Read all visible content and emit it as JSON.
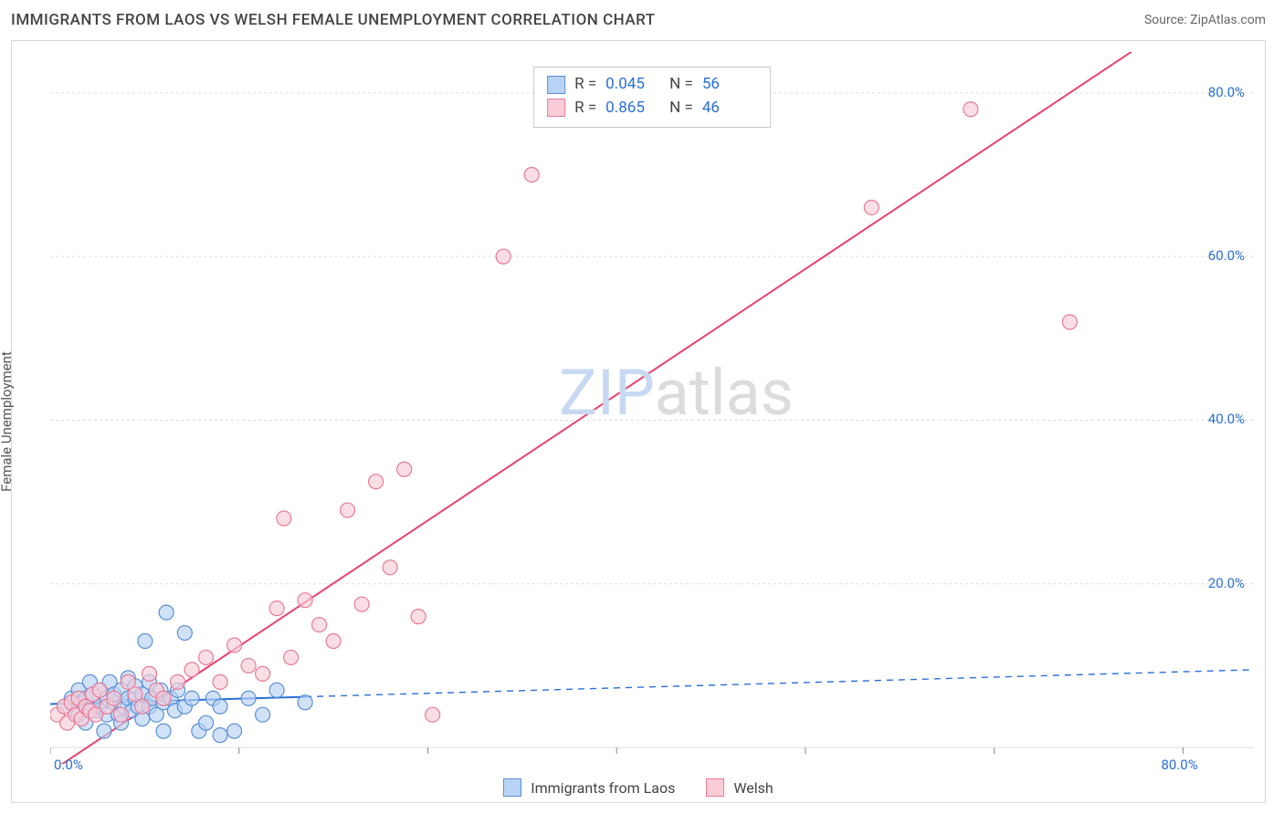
{
  "header": {
    "title": "IMMIGRANTS FROM LAOS VS WELSH FEMALE UNEMPLOYMENT CORRELATION CHART",
    "source_prefix": "Source: ",
    "source_name": "ZipAtlas.com"
  },
  "chart": {
    "type": "scatter",
    "ylabel": "Female Unemployment",
    "background_color": "#ffffff",
    "border_color": "#d9d9d9",
    "grid_color": "#dddddd",
    "tick_color": "#888888",
    "tick_label_color": "#2a6fd6",
    "xlim": [
      0,
      85
    ],
    "ylim": [
      -2,
      85
    ],
    "xticks": [
      0,
      13.33,
      26.67,
      40,
      53.33,
      66.67,
      80
    ],
    "xtick_labels": [
      "0.0%",
      "",
      "",
      "",
      "",
      "",
      "80.0%"
    ],
    "yticks": [
      20,
      40,
      60,
      80
    ],
    "ytick_labels": [
      "20.0%",
      "40.0%",
      "60.0%",
      "80.0%"
    ],
    "marker_radius": 8,
    "marker_stroke_width": 1.2,
    "series": [
      {
        "key": "laos",
        "label": "Immigrants from Laos",
        "fill": "#b9d3f4",
        "stroke": "#5a90d6",
        "reg_line": {
          "color": "#2a6fd6",
          "dash_solid_xmax": 18,
          "y_at_x0": 5.3,
          "y_at_xmax": 9.5,
          "width": 2
        },
        "stats": {
          "R": "0.045",
          "N": "56"
        },
        "points": [
          [
            1,
            5
          ],
          [
            1.5,
            6
          ],
          [
            2,
            4
          ],
          [
            2,
            7
          ],
          [
            2.2,
            5.5
          ],
          [
            2.5,
            6
          ],
          [
            2.5,
            3
          ],
          [
            2.8,
            8
          ],
          [
            3,
            5
          ],
          [
            3,
            6.5
          ],
          [
            3.2,
            4.5
          ],
          [
            3.5,
            7
          ],
          [
            3.5,
            5
          ],
          [
            3.8,
            2
          ],
          [
            4,
            6
          ],
          [
            4,
            4
          ],
          [
            4.2,
            8
          ],
          [
            4.5,
            5.5
          ],
          [
            4.5,
            6.5
          ],
          [
            4.8,
            4
          ],
          [
            5,
            7
          ],
          [
            5,
            3
          ],
          [
            5.2,
            5
          ],
          [
            5.5,
            6
          ],
          [
            5.5,
            8.5
          ],
          [
            5.8,
            4.5
          ],
          [
            6,
            6
          ],
          [
            6,
            7.5
          ],
          [
            6.2,
            5
          ],
          [
            6.5,
            3.5
          ],
          [
            6.5,
            6.5
          ],
          [
            6.7,
            13
          ],
          [
            7,
            5
          ],
          [
            7,
            8
          ],
          [
            7.2,
            6
          ],
          [
            7.5,
            4
          ],
          [
            7.8,
            7
          ],
          [
            8,
            5.5
          ],
          [
            8,
            2
          ],
          [
            8.2,
            16.5
          ],
          [
            8.5,
            6
          ],
          [
            8.8,
            4.5
          ],
          [
            9,
            7
          ],
          [
            9.5,
            14
          ],
          [
            9.5,
            5
          ],
          [
            10,
            6
          ],
          [
            10.5,
            2
          ],
          [
            11,
            3
          ],
          [
            11.5,
            6
          ],
          [
            12,
            1.5
          ],
          [
            12,
            5
          ],
          [
            13,
            2
          ],
          [
            14,
            6
          ],
          [
            15,
            4
          ],
          [
            16,
            7
          ],
          [
            18,
            5.5
          ]
        ]
      },
      {
        "key": "welsh",
        "label": "Welsh",
        "fill": "#f8cdd7",
        "stroke": "#e77b97",
        "reg_line": {
          "color": "#e9426e",
          "dash_solid_xmax": 85,
          "y_at_x0": -3,
          "y_at_xmax": 95,
          "width": 2
        },
        "stats": {
          "R": "0.865",
          "N": "46"
        },
        "points": [
          [
            0.5,
            4
          ],
          [
            1,
            5
          ],
          [
            1.2,
            3
          ],
          [
            1.5,
            5.5
          ],
          [
            1.8,
            4
          ],
          [
            2,
            6
          ],
          [
            2.2,
            3.5
          ],
          [
            2.5,
            5
          ],
          [
            2.8,
            4.5
          ],
          [
            3,
            6.5
          ],
          [
            3.2,
            4
          ],
          [
            3.5,
            7
          ],
          [
            4,
            5
          ],
          [
            4.5,
            6
          ],
          [
            5,
            4
          ],
          [
            5.5,
            8
          ],
          [
            6,
            6.5
          ],
          [
            6.5,
            5
          ],
          [
            7,
            9
          ],
          [
            7.5,
            7
          ],
          [
            8,
            6
          ],
          [
            9,
            8
          ],
          [
            10,
            9.5
          ],
          [
            11,
            11
          ],
          [
            12,
            8
          ],
          [
            13,
            12.5
          ],
          [
            14,
            10
          ],
          [
            15,
            9
          ],
          [
            16,
            17
          ],
          [
            16.5,
            28
          ],
          [
            17,
            11
          ],
          [
            18,
            18
          ],
          [
            19,
            15
          ],
          [
            20,
            13
          ],
          [
            21,
            29
          ],
          [
            22,
            17.5
          ],
          [
            23,
            32.5
          ],
          [
            24,
            22
          ],
          [
            25,
            34
          ],
          [
            26,
            16
          ],
          [
            27,
            4
          ],
          [
            32,
            60
          ],
          [
            34,
            70
          ],
          [
            58,
            66
          ],
          [
            65,
            78
          ],
          [
            72,
            52
          ]
        ]
      }
    ],
    "bottom_legend": [
      {
        "label": "Immigrants from Laos",
        "fill": "#b9d3f4",
        "stroke": "#5a90d6"
      },
      {
        "label": "Welsh",
        "fill": "#f8cdd7",
        "stroke": "#e77b97"
      }
    ],
    "watermark": {
      "text_a": "ZIP",
      "text_b": "atlas",
      "color_a": "#c7d9f2",
      "color_b": "#dcdcdc"
    },
    "stats_box_labels": {
      "R": "R =",
      "N": "N ="
    }
  }
}
